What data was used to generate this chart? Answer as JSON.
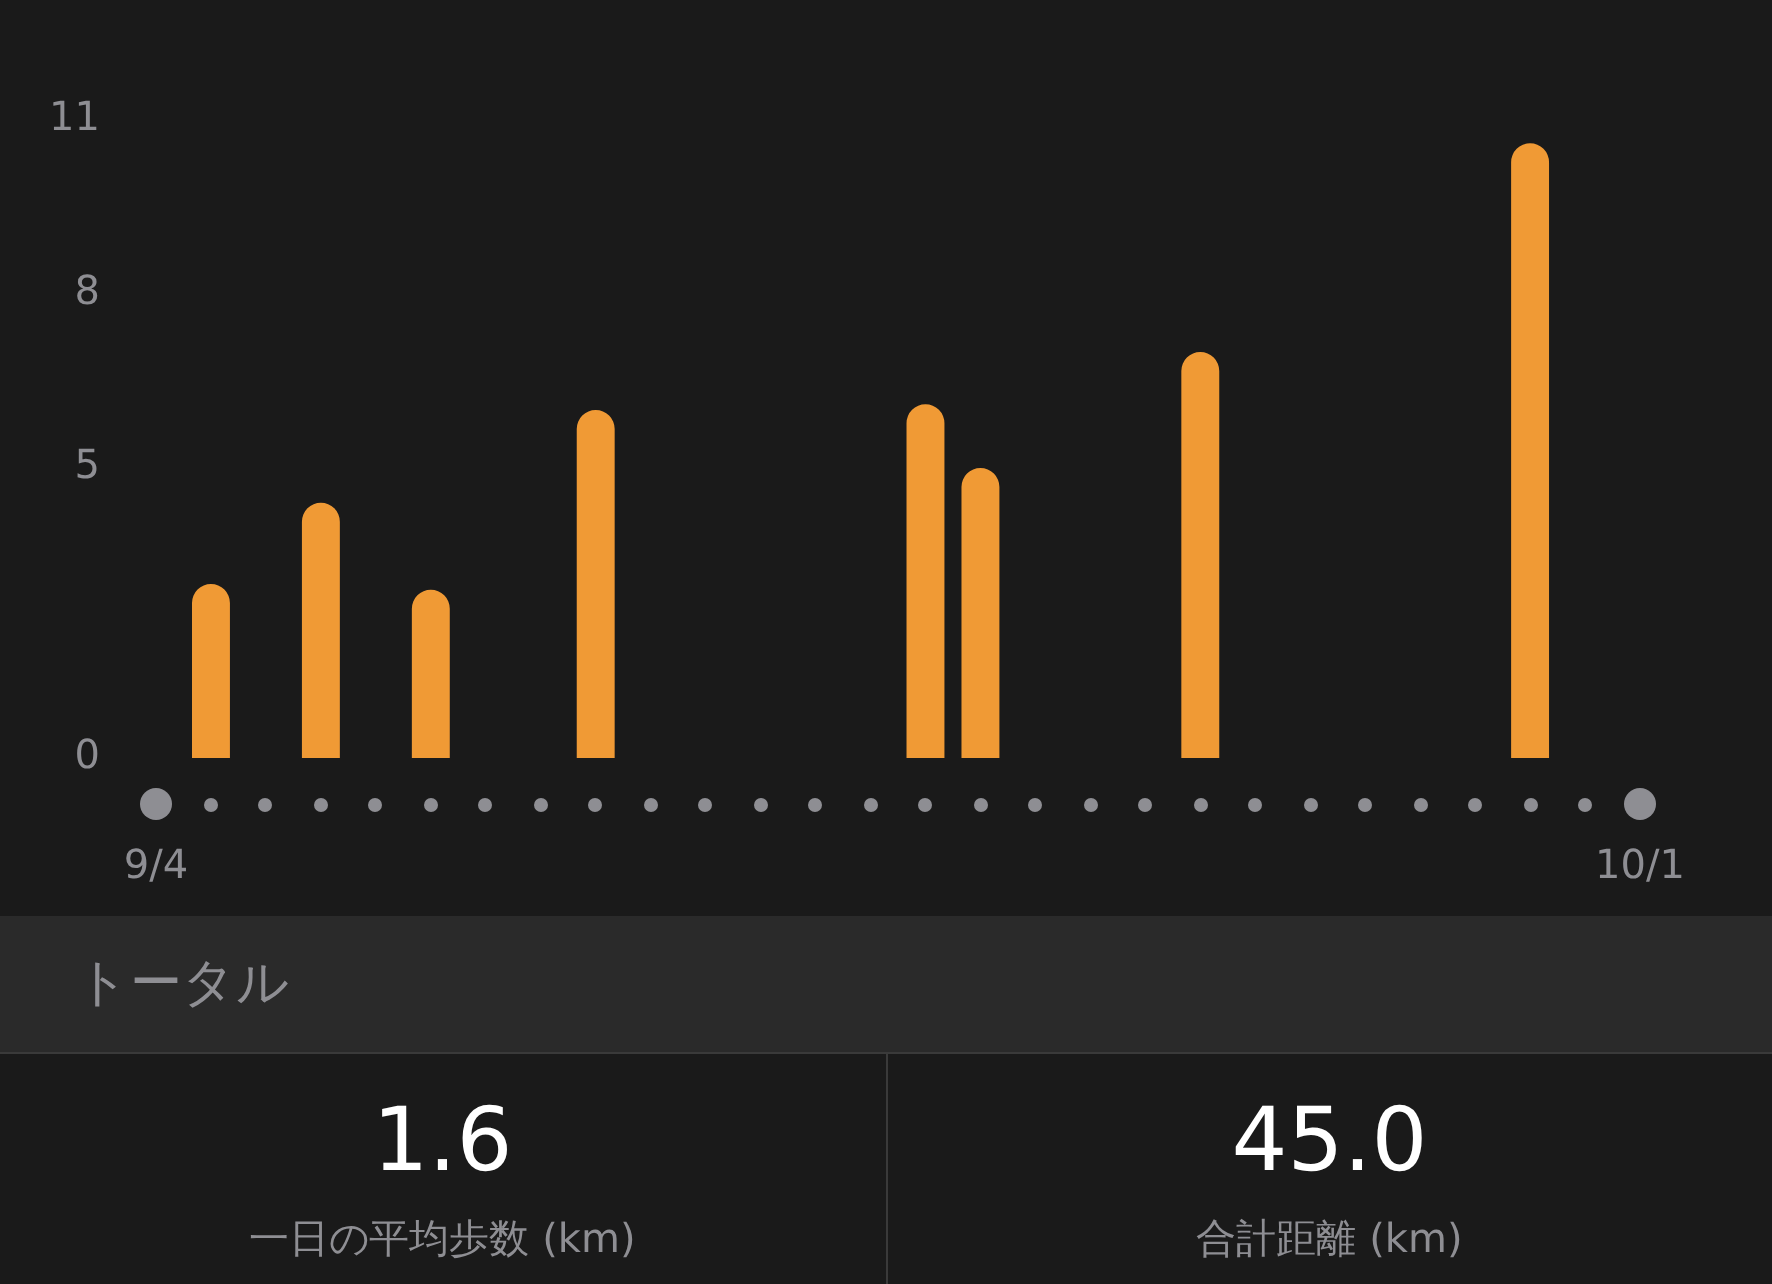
{
  "chart_data": [
    {
      "type": "bar",
      "categories": [
        "9/4",
        null,
        null,
        null,
        null,
        null,
        null,
        null,
        null,
        null,
        null,
        null,
        null,
        null,
        null,
        null,
        null,
        null,
        null,
        null,
        null,
        null,
        null,
        null,
        null,
        null,
        null,
        "10/1"
      ],
      "values": [
        null,
        3.0,
        null,
        4.4,
        null,
        2.9,
        null,
        null,
        6.0,
        null,
        null,
        null,
        null,
        null,
        6.1,
        5.0,
        null,
        null,
        null,
        7.0,
        null,
        null,
        null,
        null,
        null,
        10.6,
        null,
        null
      ],
      "color": "#f09a35",
      "ylim": [
        0,
        11
      ],
      "yticks": [
        0,
        5,
        8,
        11
      ],
      "grid": false,
      "legend": false
    },
    {
      "type": "other",
      "title": "トータル",
      "annotations": [
        "1.6",
        "一日の平均歩数 (km)",
        "45.0",
        "合計距離 (km)"
      ]
    }
  ]
}
